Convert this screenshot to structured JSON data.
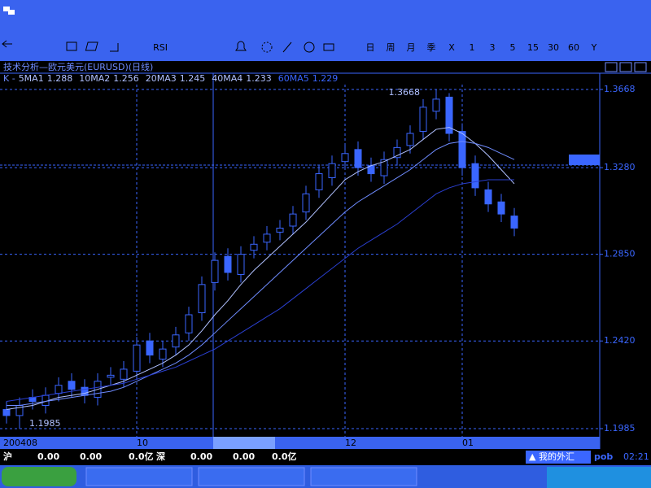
{
  "toolbar": {
    "items": [
      "RSI",
      "日",
      "周",
      "月",
      "季",
      "X",
      "1",
      "3",
      "5",
      "15",
      "30",
      "60",
      "Y"
    ]
  },
  "chart_data": {
    "type": "candlestick",
    "title": "技术分析—欧元美元(EURUSD)(日线)",
    "ma_legend": [
      {
        "name": "K -",
        "value": null
      },
      {
        "name": "5MA1",
        "value": 1.288
      },
      {
        "name": "10MA2",
        "value": 1.256
      },
      {
        "name": "20MA3",
        "value": 1.245
      },
      {
        "name": "40MA4",
        "value": 1.233
      },
      {
        "name": "60MA5",
        "value": 1.229
      }
    ],
    "period_label": "日线",
    "annotations": [
      "1.3668",
      "1.1985"
    ],
    "categories": [
      "200408",
      null,
      null,
      null,
      null,
      null,
      null,
      null,
      null,
      null,
      "10",
      null,
      null,
      null,
      null,
      null,
      null,
      null,
      null,
      null,
      null,
      null,
      null,
      null,
      null,
      null,
      "12",
      null,
      null,
      null,
      null,
      null,
      null,
      null,
      null,
      "01",
      null,
      null,
      null,
      null
    ],
    "open": [
      1.208,
      1.205,
      1.214,
      1.21,
      1.216,
      1.222,
      1.219,
      1.214,
      1.224,
      1.223,
      1.227,
      1.242,
      1.233,
      1.239,
      1.246,
      1.256,
      1.271,
      1.284,
      1.275,
      1.287,
      1.291,
      1.296,
      1.299,
      1.306,
      1.317,
      1.323,
      1.331,
      1.337,
      1.329,
      1.324,
      1.333,
      1.339,
      1.346,
      1.356,
      1.363,
      1.346,
      1.33,
      1.317,
      1.311,
      1.304
    ],
    "high": [
      1.212,
      1.214,
      1.218,
      1.219,
      1.224,
      1.226,
      1.223,
      1.226,
      1.229,
      1.232,
      1.244,
      1.246,
      1.242,
      1.249,
      1.259,
      1.274,
      1.286,
      1.288,
      1.289,
      1.294,
      1.299,
      1.302,
      1.309,
      1.319,
      1.329,
      1.334,
      1.339,
      1.341,
      1.333,
      1.336,
      1.342,
      1.349,
      1.362,
      1.3668,
      1.365,
      1.35,
      1.334,
      1.321,
      1.315,
      1.308
    ],
    "low": [
      1.201,
      1.1985,
      1.208,
      1.206,
      1.212,
      1.214,
      1.211,
      1.21,
      1.22,
      1.219,
      1.223,
      1.231,
      1.229,
      1.235,
      1.242,
      1.252,
      1.267,
      1.272,
      1.271,
      1.283,
      1.287,
      1.292,
      1.295,
      1.302,
      1.313,
      1.319,
      1.327,
      1.324,
      1.321,
      1.32,
      1.329,
      1.335,
      1.342,
      1.352,
      1.341,
      1.324,
      1.314,
      1.306,
      1.301,
      1.294
    ],
    "close": [
      1.205,
      1.21,
      1.212,
      1.215,
      1.22,
      1.218,
      1.215,
      1.222,
      1.225,
      1.228,
      1.24,
      1.235,
      1.238,
      1.245,
      1.255,
      1.27,
      1.282,
      1.276,
      1.285,
      1.29,
      1.295,
      1.298,
      1.305,
      1.315,
      1.325,
      1.33,
      1.335,
      1.328,
      1.325,
      1.332,
      1.338,
      1.345,
      1.358,
      1.362,
      1.345,
      1.328,
      1.318,
      1.31,
      1.305,
      1.298
    ],
    "color": "#3a66ff",
    "series": [
      {
        "name": "10MA2",
        "color": "#b0c0ff",
        "values": [
          1.208,
          1.209,
          1.21,
          1.212,
          1.214,
          1.215,
          1.216,
          1.218,
          1.22,
          1.222,
          1.225,
          1.228,
          1.231,
          1.235,
          1.24,
          1.247,
          1.255,
          1.262,
          1.27,
          1.277,
          1.283,
          1.289,
          1.295,
          1.301,
          1.308,
          1.315,
          1.322,
          1.326,
          1.329,
          1.331,
          1.334,
          1.337,
          1.342,
          1.347,
          1.348,
          1.345,
          1.34,
          1.334,
          1.327,
          1.32
        ]
      },
      {
        "name": "20MA3",
        "color": "#6f8cff",
        "values": [
          1.21,
          1.21,
          1.211,
          1.212,
          1.213,
          1.214,
          1.215,
          1.216,
          1.217,
          1.219,
          1.222,
          1.225,
          1.228,
          1.231,
          1.235,
          1.24,
          1.246,
          1.252,
          1.258,
          1.264,
          1.27,
          1.276,
          1.282,
          1.288,
          1.294,
          1.3,
          1.306,
          1.311,
          1.315,
          1.319,
          1.323,
          1.327,
          1.332,
          1.337,
          1.34,
          1.341,
          1.34,
          1.338,
          1.335,
          1.332
        ]
      },
      {
        "name": "60MA5",
        "color": "#2a3fd0",
        "values": [
          1.212,
          1.213,
          1.214,
          1.215,
          1.216,
          1.217,
          1.218,
          1.219,
          1.22,
          1.221,
          1.223,
          1.225,
          1.227,
          1.229,
          1.232,
          1.235,
          1.238,
          1.242,
          1.246,
          1.25,
          1.254,
          1.258,
          1.263,
          1.268,
          1.273,
          1.278,
          1.283,
          1.288,
          1.292,
          1.296,
          1.3,
          1.305,
          1.31,
          1.315,
          1.318,
          1.32,
          1.321,
          1.322,
          1.322,
          1.322
        ]
      }
    ],
    "ylim": [
      1.1985,
      1.3668
    ],
    "yticks": [
      {
        "value": 1.1985,
        "label": "1.1985"
      },
      {
        "value": 1.242,
        "label": "1.2420"
      },
      {
        "value": 1.285,
        "label": "1.2850"
      },
      {
        "value": 1.328,
        "label": "1.3280"
      },
      {
        "value": 1.3668,
        "label": "1.3668"
      }
    ],
    "grid": true
  },
  "status": {
    "sh_label": "沪",
    "sh_values": [
      "0.00",
      "0.00",
      "0.0亿"
    ],
    "sz_label": "深",
    "sz_values": [
      "0.00",
      "0.00",
      "0.0亿"
    ],
    "account": "▲ 我的外汇",
    "user": "pob",
    "time": "02:21"
  }
}
